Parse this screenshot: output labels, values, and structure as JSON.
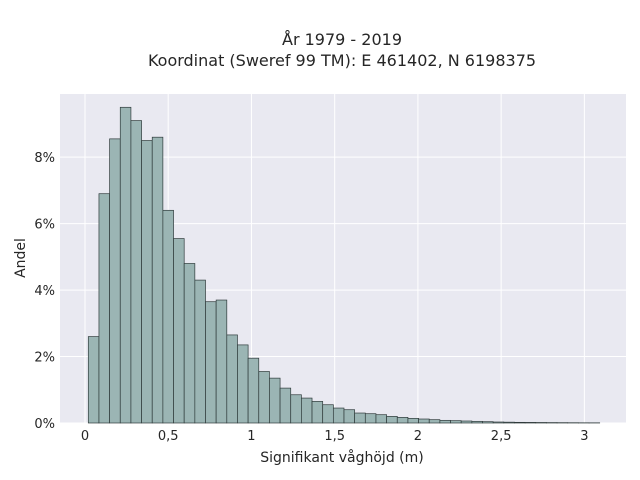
{
  "chart_data": {
    "type": "bar",
    "title_line1": "År 1979 - 2019",
    "title_line2": "Koordinat (Sweref 99 TM): E 461402, N 6198375",
    "xlabel": "Signifikant våghöjd (m)",
    "ylabel": "Andel",
    "xlim": [
      -0.15,
      3.25
    ],
    "ylim": [
      0,
      9.9
    ],
    "x_ticks": [
      0,
      0.5,
      1,
      1.5,
      2,
      2.5,
      3
    ],
    "x_tick_labels": [
      "0",
      "0,5",
      "1",
      "1,5",
      "2",
      "2,5",
      "3"
    ],
    "y_ticks": [
      0,
      2,
      4,
      6,
      8
    ],
    "y_tick_labels": [
      "0%",
      "2%",
      "4%",
      "6%",
      "8%"
    ],
    "bin_width": 0.064,
    "bin_starts": [
      0.02,
      0.084,
      0.148,
      0.212,
      0.276,
      0.34,
      0.404,
      0.468,
      0.532,
      0.596,
      0.66,
      0.724,
      0.788,
      0.852,
      0.916,
      0.98,
      1.044,
      1.108,
      1.172,
      1.236,
      1.3,
      1.364,
      1.428,
      1.492,
      1.556,
      1.62,
      1.684,
      1.748,
      1.812,
      1.876,
      1.94,
      2.004,
      2.068,
      2.132,
      2.196,
      2.26,
      2.324,
      2.388,
      2.452,
      2.516,
      2.58,
      2.644,
      2.708,
      2.772,
      2.836,
      2.9,
      2.964,
      3.028
    ],
    "values": [
      2.6,
      6.9,
      8.55,
      9.5,
      9.1,
      8.5,
      8.6,
      6.4,
      5.55,
      4.8,
      4.3,
      3.65,
      3.7,
      2.65,
      2.35,
      1.95,
      1.55,
      1.35,
      1.05,
      0.85,
      0.75,
      0.65,
      0.55,
      0.45,
      0.4,
      0.3,
      0.28,
      0.25,
      0.2,
      0.17,
      0.14,
      0.12,
      0.1,
      0.08,
      0.07,
      0.06,
      0.05,
      0.04,
      0.03,
      0.025,
      0.02,
      0.018,
      0.015,
      0.012,
      0.01,
      0.008,
      0.006,
      0.005
    ],
    "bar_color": "#9bb5b4",
    "bar_edge_color": "#2f3b3b",
    "background_color": "#e9e9f1",
    "grid": true,
    "grid_color": "#ffffff"
  }
}
